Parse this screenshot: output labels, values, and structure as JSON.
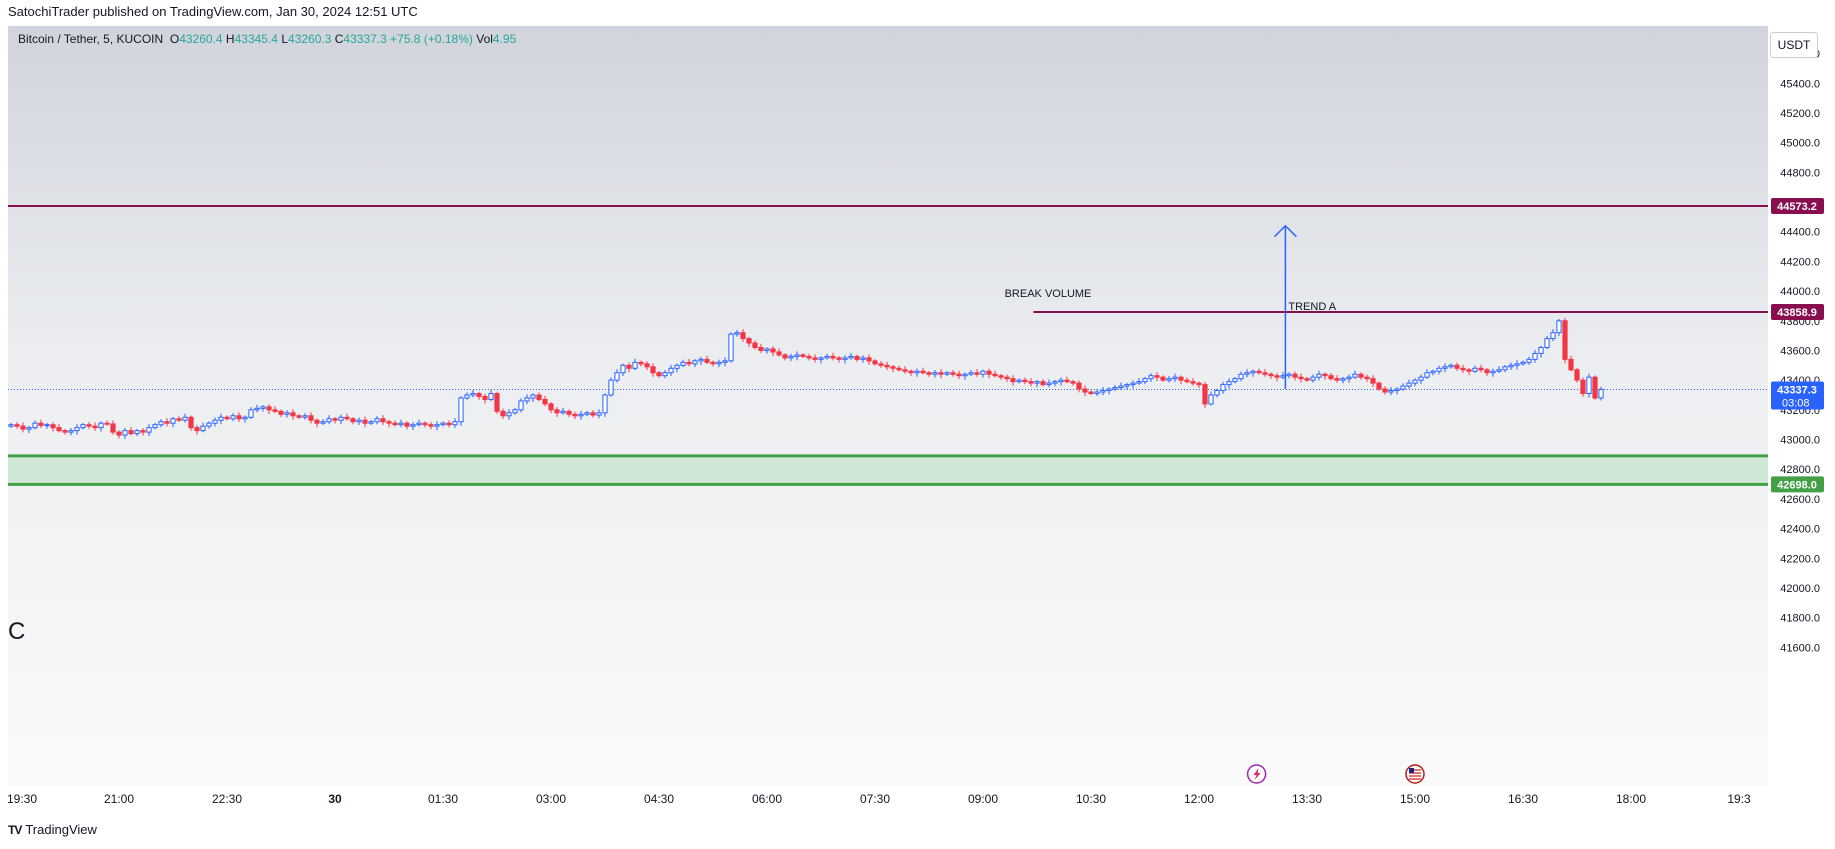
{
  "header": {
    "published": "SatochiTrader published on TradingView.com, Jan 30, 2024 12:51 UTC"
  },
  "symbol_bar": {
    "name": "Bitcoin / Tether, 5, KUCOIN",
    "o_label": "O",
    "o_value": "43260.4",
    "h_label": "H",
    "h_value": "43345.4",
    "l_label": "L",
    "l_value": "43260.3",
    "c_label": "C",
    "c_value": "43337.3",
    "change": "+75.8 (+0.18%)",
    "vol_label": "Vol",
    "vol_value": "4.95"
  },
  "currency_button": "USDT",
  "left_mark": "C",
  "footer": {
    "logo": "TV",
    "brand": "TradingView"
  },
  "colors": {
    "up": "#2962ff",
    "down": "#f23645",
    "resistance": "#880e4f",
    "support_zone": "#cfe8d5",
    "support_line": "#43a047",
    "arrow": "#2962ff",
    "price_line": "#2962ff",
    "bg_top": "#d1d4dc",
    "bg_bottom": "#fafafa"
  },
  "icons": [
    "lightning-event-icon",
    "us-flag-event-icon"
  ],
  "chart_data": {
    "type": "candlestick",
    "y_axis": {
      "min": 41500,
      "max": 45750,
      "ticks": [
        45600,
        45400,
        45200,
        45000,
        44800,
        44400,
        44200,
        44000,
        43800,
        43600,
        43400,
        43200,
        43000,
        42800,
        42600,
        42400,
        42200,
        42000,
        41800,
        41600
      ],
      "tick_labels": [
        "45600.0",
        "45400.0",
        "45200.0",
        "45000.0",
        "44800.0",
        "44400.0",
        "44200.0",
        "44000.0",
        "43800.0",
        "43600.0",
        "43400.0",
        "43200.0",
        "43000.0",
        "42800.0",
        "42600.0",
        "42400.0",
        "42200.0",
        "42000.0",
        "41800.0",
        "41600.0"
      ]
    },
    "x_axis": {
      "labels": [
        "19:30",
        "21:00",
        "22:30",
        "30",
        "01:30",
        "03:00",
        "04:30",
        "06:00",
        "07:30",
        "09:00",
        "10:30",
        "12:00",
        "13:30",
        "15:00",
        "16:30",
        "18:00",
        "19:3"
      ],
      "label_hours": [
        -4.5,
        -3,
        -1.5,
        0,
        1.5,
        3,
        4.5,
        6,
        7.5,
        9,
        10.5,
        12,
        13.5,
        15,
        16.5,
        18,
        19.5
      ]
    },
    "candle_interval_minutes": 5,
    "candles_start_hour": -4.5,
    "closes": [
      43100,
      43090,
      43070,
      43080,
      43110,
      43095,
      43100,
      43080,
      43060,
      43050,
      43060,
      43080,
      43100,
      43090,
      43080,
      43110,
      43105,
      43050,
      43030,
      43060,
      43040,
      43060,
      43050,
      43080,
      43100,
      43120,
      43110,
      43140,
      43130,
      43150,
      43080,
      43060,
      43090,
      43110,
      43130,
      43150,
      43140,
      43160,
      43140,
      43150,
      43200,
      43210,
      43220,
      43200,
      43190,
      43170,
      43180,
      43160,
      43150,
      43160,
      43130,
      43110,
      43120,
      43140,
      43130,
      43150,
      43140,
      43120,
      43130,
      43110,
      43120,
      43140,
      43120,
      43110,
      43100,
      43110,
      43090,
      43100,
      43110,
      43100,
      43090,
      43100,
      43110,
      43100,
      43120,
      43280,
      43300,
      43310,
      43290,
      43270,
      43310,
      43190,
      43160,
      43180,
      43200,
      43260,
      43280,
      43300,
      43270,
      43240,
      43200,
      43180,
      43190,
      43170,
      43160,
      43170,
      43180,
      43165,
      43180,
      43300,
      43400,
      43450,
      43500,
      43480,
      43520,
      43510,
      43490,
      43450,
      43430,
      43450,
      43480,
      43500,
      43520,
      43510,
      43530,
      43540,
      43520,
      43510,
      43520,
      43530,
      43710,
      43720,
      43680,
      43650,
      43620,
      43600,
      43610,
      43590,
      43570,
      43550,
      43560,
      43570,
      43560,
      43550,
      43540,
      43550,
      43560,
      43550,
      43540,
      43550,
      43560,
      43540,
      43550,
      43530,
      43510,
      43500,
      43490,
      43480,
      43470,
      43460,
      43450,
      43460,
      43450,
      43440,
      43450,
      43440,
      43450,
      43440,
      43430,
      43440,
      43450,
      43440,
      43460,
      43440,
      43430,
      43420,
      43410,
      43390,
      43400,
      43390,
      43380,
      43390,
      43370,
      43380,
      43390,
      43400,
      43390,
      43380,
      43340,
      43320,
      43310,
      43320,
      43330,
      43340,
      43350,
      43360,
      43370,
      43380,
      43390,
      43410,
      43430,
      43420,
      43400,
      43410,
      43420,
      43400,
      43390,
      43380,
      43370,
      43240,
      43300,
      43330,
      43370,
      43390,
      43410,
      43440,
      43450,
      43460,
      43450,
      43440,
      43430,
      43420,
      43430,
      43440,
      43420,
      43410,
      43400,
      43420,
      43440,
      43430,
      43410,
      43400,
      43410,
      43420,
      43440,
      43420,
      43410,
      43380,
      43340,
      43320,
      43330,
      43340,
      43360,
      43380,
      43400,
      43420,
      43450,
      43460,
      43480,
      43490,
      43500,
      43480,
      43470,
      43460,
      43480,
      43470,
      43450,
      43460,
      43470,
      43490,
      43500,
      43510,
      43520,
      43540,
      43580,
      43620,
      43680,
      43720,
      43800,
      43540,
      43470,
      43400,
      43310,
      43420,
      43280,
      43337.3
    ]
  },
  "levels": {
    "resistance": {
      "value": 44573.2,
      "label": "44573.2"
    },
    "trend": {
      "value": 43858.9,
      "label": "43858.9",
      "text": "TREND A",
      "start_hour": 9.7
    },
    "support": {
      "value": 42698.0,
      "label": "42698.0",
      "zone_top": 42890
    },
    "current": {
      "value": 43337.3,
      "label": "43337.3",
      "countdown": "03:08"
    }
  },
  "annotations": {
    "break_volume": {
      "text": "BREAK VOLUME",
      "hour": 9.3,
      "price": 43960
    },
    "arrow": {
      "hour": 13.2,
      "from_price": 43340,
      "to_price": 44440
    }
  },
  "events": [
    {
      "icon": "lightning-event-icon",
      "hour": 12.8
    },
    {
      "icon": "us-flag-event-icon",
      "hour": 15.0
    }
  ]
}
